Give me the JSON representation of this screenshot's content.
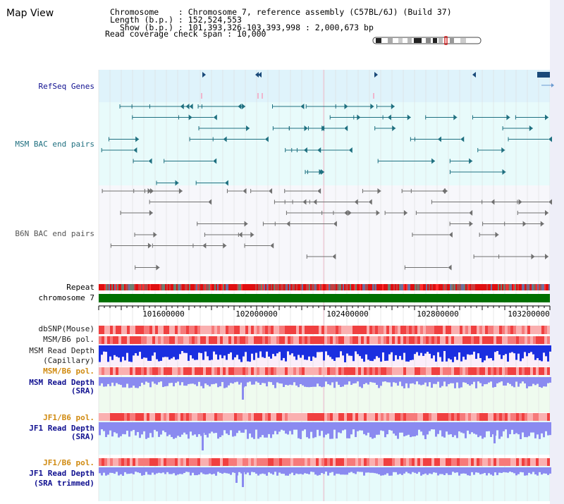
{
  "title": "Map View",
  "info": {
    "chromosome": "Chromosome    : Chromosome 7, reference assembly (C57BL/6J) (Build 37)",
    "length": "Length (b.p.) : 152,524,553",
    "show": "  Show (b.p.) : 101,393,326-103,393,998 : 2,000,673 bp",
    "span": "Read coverage check span : 10,000"
  },
  "tracks": {
    "refseq": "RefSeq Genes",
    "msm_bac": "MSM BAC end pairs",
    "b6n_bac": "B6N BAC end pairs",
    "repeat": "Repeat",
    "chromosome": "chromosome 7",
    "dbsnp": "dbSNP(Mouse)",
    "msm_b6_pol_1": "MSM/B6 pol.",
    "msm_depth_cap_1": "MSM Read Depth",
    "msm_depth_cap_2": "(Capillary)",
    "msm_b6_pol_2": "MSM/B6 pol.",
    "msm_depth_sra_1": "MSM Read Depth",
    "msm_depth_sra_2": "(SRA)",
    "jf1_b6_pol_1": "JF1/B6 pol.",
    "jf1_depth_sra_1": "JF1 Read Depth",
    "jf1_depth_sra_2": "(SRA)",
    "jf1_b6_pol_2": "JF1/B6 pol.",
    "jf1_depth_trim_1": "JF1 Read Depth",
    "jf1_depth_trim_2": "(SRA trimmed)"
  },
  "axis": {
    "ticks": [
      "101600000",
      "102000000",
      "102400000",
      "102800000",
      "103200000"
    ]
  },
  "colors": {
    "refseq_bg": "#dff3fb",
    "gene": "#1a4a7a",
    "msm_pair": "#1f7080",
    "b6n_pair": "#707070",
    "chromosome": "#007000",
    "depth_capillary": "#1a2fe0",
    "depth_sra": "#8a8af0",
    "label_navy": "#101090",
    "label_teal": "#207080",
    "label_orange": "#d08a10"
  }
}
